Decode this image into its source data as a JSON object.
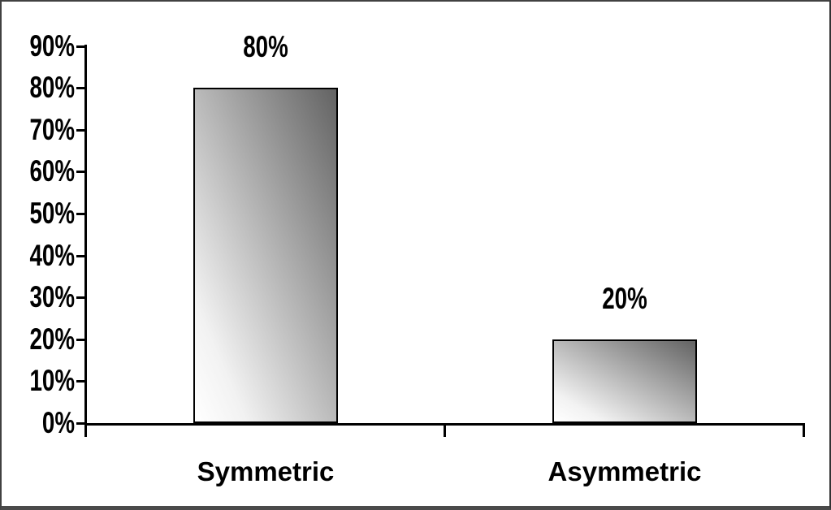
{
  "chart_data": {
    "type": "bar",
    "title": "",
    "xlabel": "",
    "ylabel": "",
    "categories": [
      "Symmetric",
      "Asymmetric"
    ],
    "values": [
      80,
      20
    ],
    "data_labels": [
      "80%",
      "20%"
    ],
    "y_axis": {
      "unit": "%",
      "range": [
        0,
        90
      ],
      "tick_step": 10,
      "ticks": [
        {
          "label": "90%",
          "value": 90
        },
        {
          "label": "80%",
          "value": 80
        },
        {
          "label": "70%",
          "value": 70
        },
        {
          "label": "60%",
          "value": 60
        },
        {
          "label": "50%",
          "value": 50
        },
        {
          "label": "40%",
          "value": 40
        },
        {
          "label": "30%",
          "value": 30
        },
        {
          "label": "20%",
          "value": 20
        },
        {
          "label": "10%",
          "value": 10
        },
        {
          "label": "0%",
          "value": 0
        }
      ]
    },
    "grid": false,
    "legend": null,
    "colors": {
      "background": "#ffffff",
      "text": "#000000",
      "axis": "#000000",
      "bar_border": "#000000",
      "bar_gradient_light": "#ffffff",
      "bar_gradient_dark": "#636363",
      "outer_frame": "#414141"
    }
  }
}
